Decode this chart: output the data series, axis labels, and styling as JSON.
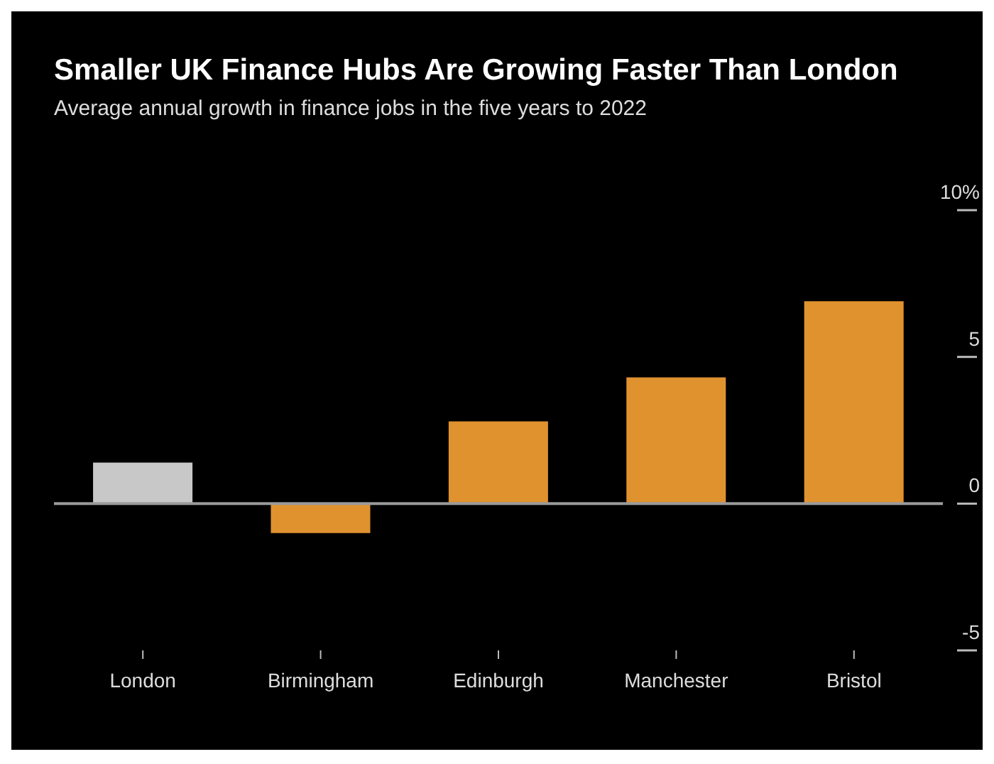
{
  "chart_data": {
    "type": "bar",
    "title": "Smaller UK Finance Hubs Are Growing Faster Than London",
    "subtitle": "Average annual growth in finance jobs in the five years to 2022",
    "categories": [
      "London",
      "Birmingham",
      "Edinburgh",
      "Manchester",
      "Bristol"
    ],
    "values": [
      1.4,
      -1.0,
      2.8,
      4.3,
      6.9
    ],
    "colors": [
      "#c8c8c8",
      "#e0922f",
      "#e0922f",
      "#e0922f",
      "#e0922f"
    ],
    "ylim": [
      -5,
      10
    ],
    "yticks": [
      {
        "value": 10,
        "label": "10%"
      },
      5,
      0,
      -5
    ],
    "ref_lines": [
      {
        "axis": "y",
        "value": 0,
        "color": "#9a9a9a"
      }
    ],
    "grid": false,
    "legend": false
  }
}
